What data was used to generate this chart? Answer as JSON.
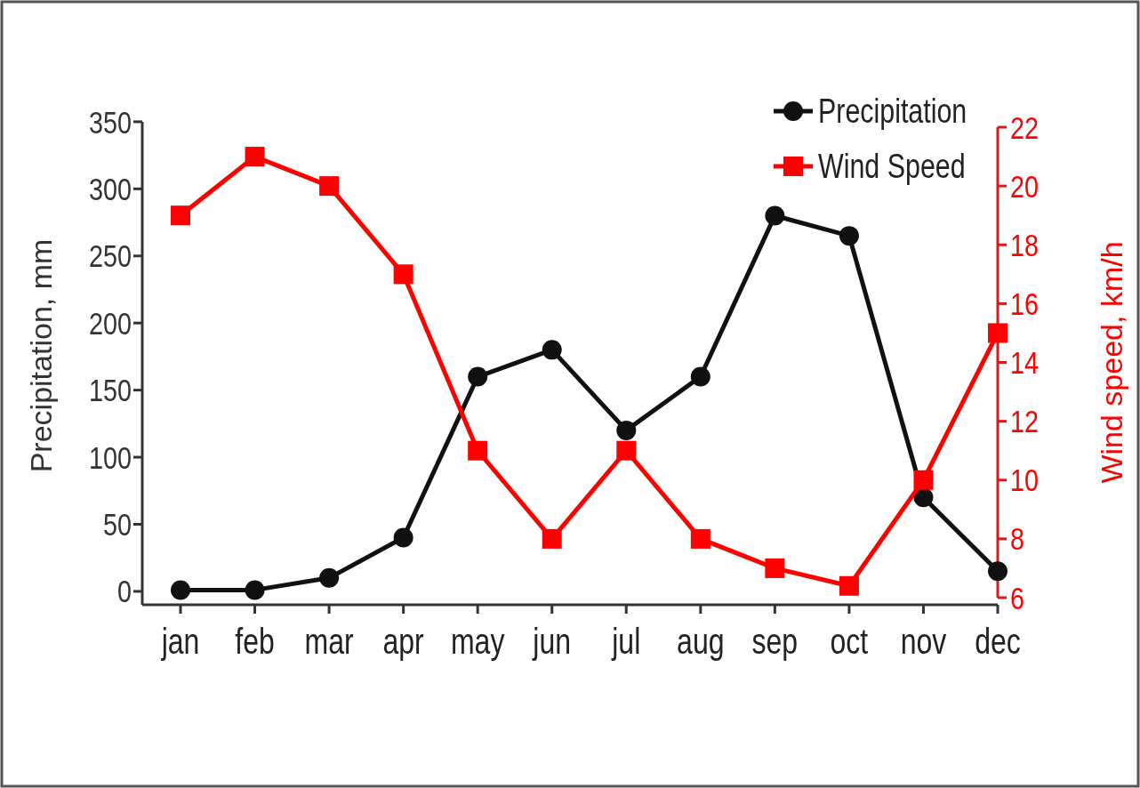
{
  "chart_data": {
    "type": "line",
    "categories": [
      "jan",
      "feb",
      "mar",
      "apr",
      "may",
      "jun",
      "jul",
      "aug",
      "sep",
      "oct",
      "nov",
      "dec"
    ],
    "ylabel": "Precipitation, mm",
    "y2label": "Wind speed, km/h",
    "ylim": [
      -10,
      350
    ],
    "yticks": [
      0,
      50,
      100,
      150,
      200,
      250,
      300,
      350
    ],
    "y2lim": [
      6,
      22
    ],
    "y2ticks": [
      6,
      8,
      10,
      12,
      14,
      16,
      18,
      20,
      22
    ],
    "legend": "top right",
    "grid": false,
    "line_style": "solid",
    "series": [
      {
        "name": "Precipitation",
        "color": "#111111",
        "marker": "circle",
        "values": [
          1,
          1,
          10,
          40,
          160,
          180,
          120,
          160,
          280,
          265,
          70,
          15
        ]
      },
      {
        "name": "Wind Speed",
        "color": "#ff0000",
        "marker": "square",
        "axis": "y2",
        "values": [
          19,
          21,
          20,
          17,
          11,
          8,
          11,
          8,
          7,
          6.4,
          10,
          15
        ]
      }
    ]
  }
}
